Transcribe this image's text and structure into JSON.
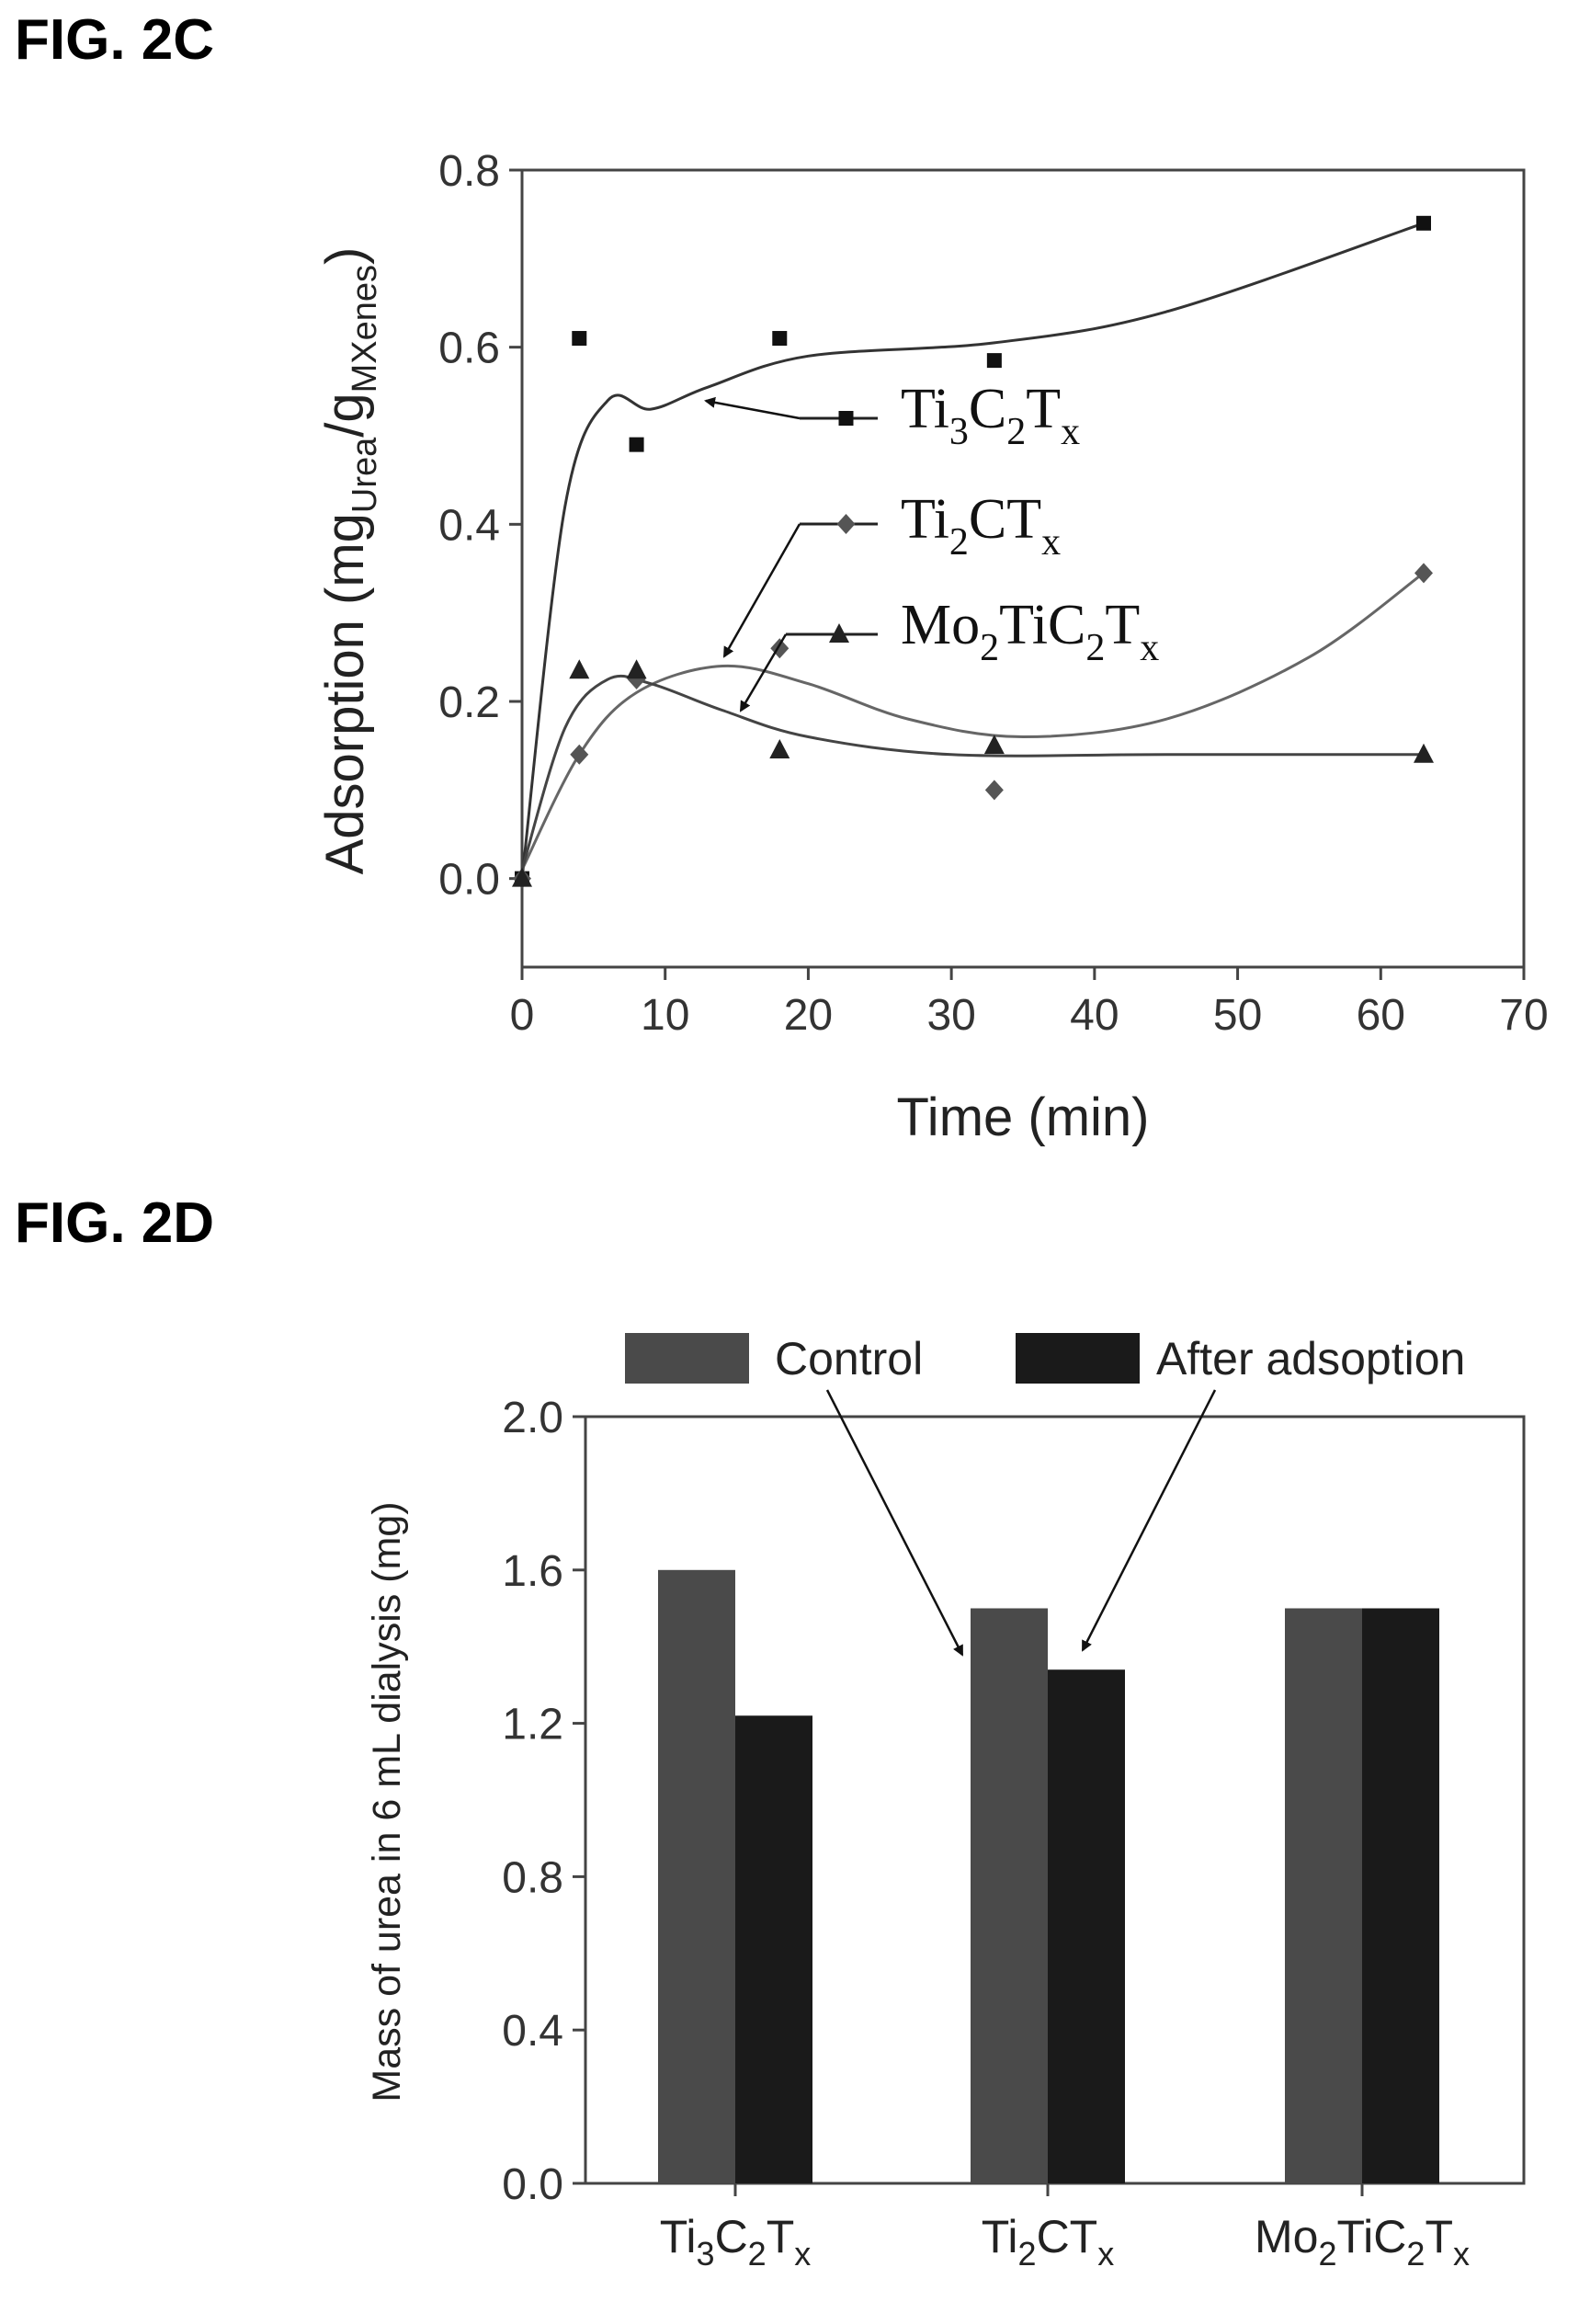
{
  "figures": {
    "c_label": "FIG. 2C",
    "d_label": "FIG. 2D"
  },
  "chart_data": [
    {
      "type": "scatter",
      "xlabel": "Time (min)",
      "ylabel": {
        "prefix": "Adsorption (mg",
        "sub1": "Urea",
        "mid": "/g",
        "sub2": "MXenes",
        "suffix": ")"
      },
      "xlim": [
        0,
        70
      ],
      "ylim": [
        -0.1,
        0.8
      ],
      "xticks": [
        "0",
        "10",
        "20",
        "30",
        "40",
        "50",
        "60",
        "70"
      ],
      "yticks": [
        "0.0",
        "0.2",
        "0.4",
        "0.6",
        "0.8"
      ],
      "grid": false,
      "series": [
        {
          "marker": "square",
          "label": {
            "a": "Ti",
            "s1": "3",
            "b": "C",
            "s2": "2",
            "c": "T",
            "s3": "x"
          },
          "x": [
            0,
            4,
            8,
            18,
            33,
            63
          ],
          "y": [
            0.0,
            0.61,
            0.49,
            0.61,
            0.585,
            0.74
          ],
          "fit": [
            [
              0,
              0.0
            ],
            [
              3,
              0.42
            ],
            [
              6,
              0.54
            ],
            [
              9,
              0.53
            ],
            [
              13,
              0.555
            ],
            [
              20,
              0.59
            ],
            [
              33,
              0.605
            ],
            [
              45,
              0.64
            ],
            [
              63,
              0.74
            ]
          ]
        },
        {
          "marker": "diamond",
          "label": {
            "a": "Ti",
            "s1": "2",
            "b": "CT",
            "s2": "x"
          },
          "x": [
            0,
            4,
            8,
            18,
            33,
            63
          ],
          "y": [
            0.0,
            0.14,
            0.225,
            0.26,
            0.1,
            0.345
          ],
          "fit": [
            [
              0,
              0.01
            ],
            [
              4,
              0.14
            ],
            [
              8,
              0.21
            ],
            [
              14,
              0.24
            ],
            [
              20,
              0.22
            ],
            [
              27,
              0.18
            ],
            [
              35,
              0.16
            ],
            [
              45,
              0.18
            ],
            [
              55,
              0.25
            ],
            [
              63,
              0.345
            ]
          ]
        },
        {
          "marker": "triangle",
          "label": {
            "a": "Mo",
            "s1": "2",
            "b": "TiC",
            "s2": "2",
            "c": "T",
            "s3": "x"
          },
          "x": [
            0,
            4,
            8,
            18,
            33,
            63
          ],
          "y": [
            0.0,
            0.235,
            0.235,
            0.145,
            0.15,
            0.14
          ],
          "fit": [
            [
              0,
              0.01
            ],
            [
              3,
              0.17
            ],
            [
              6,
              0.225
            ],
            [
              9,
              0.22
            ],
            [
              14,
              0.19
            ],
            [
              20,
              0.16
            ],
            [
              30,
              0.14
            ],
            [
              45,
              0.14
            ],
            [
              63,
              0.14
            ]
          ]
        }
      ]
    },
    {
      "type": "bar",
      "ylabel": "Mass of urea in 6 mL dialysis (mg)",
      "ylim": [
        0,
        2.0
      ],
      "yticks": [
        "0.0",
        "0.4",
        "0.8",
        "1.2",
        "1.6",
        "2.0"
      ],
      "legend": {
        "position": "top",
        "control": "Control",
        "after": "After adsoption"
      },
      "categories": [
        {
          "a": "Ti",
          "s1": "3",
          "b": "C",
          "s2": "2",
          "c": "T",
          "s3": "x"
        },
        {
          "a": "Ti",
          "s1": "2",
          "b": "CT",
          "s2": "x"
        },
        {
          "a": "Mo",
          "s1": "2",
          "b": "TiC",
          "s2": "2",
          "c": "T",
          "s3": "x"
        }
      ],
      "series": [
        {
          "key": "control",
          "color": "#4a4a4a",
          "values": [
            1.6,
            1.5,
            1.5
          ]
        },
        {
          "key": "after",
          "color": "#1a1a1a",
          "values": [
            1.22,
            1.34,
            1.5
          ]
        }
      ]
    }
  ]
}
